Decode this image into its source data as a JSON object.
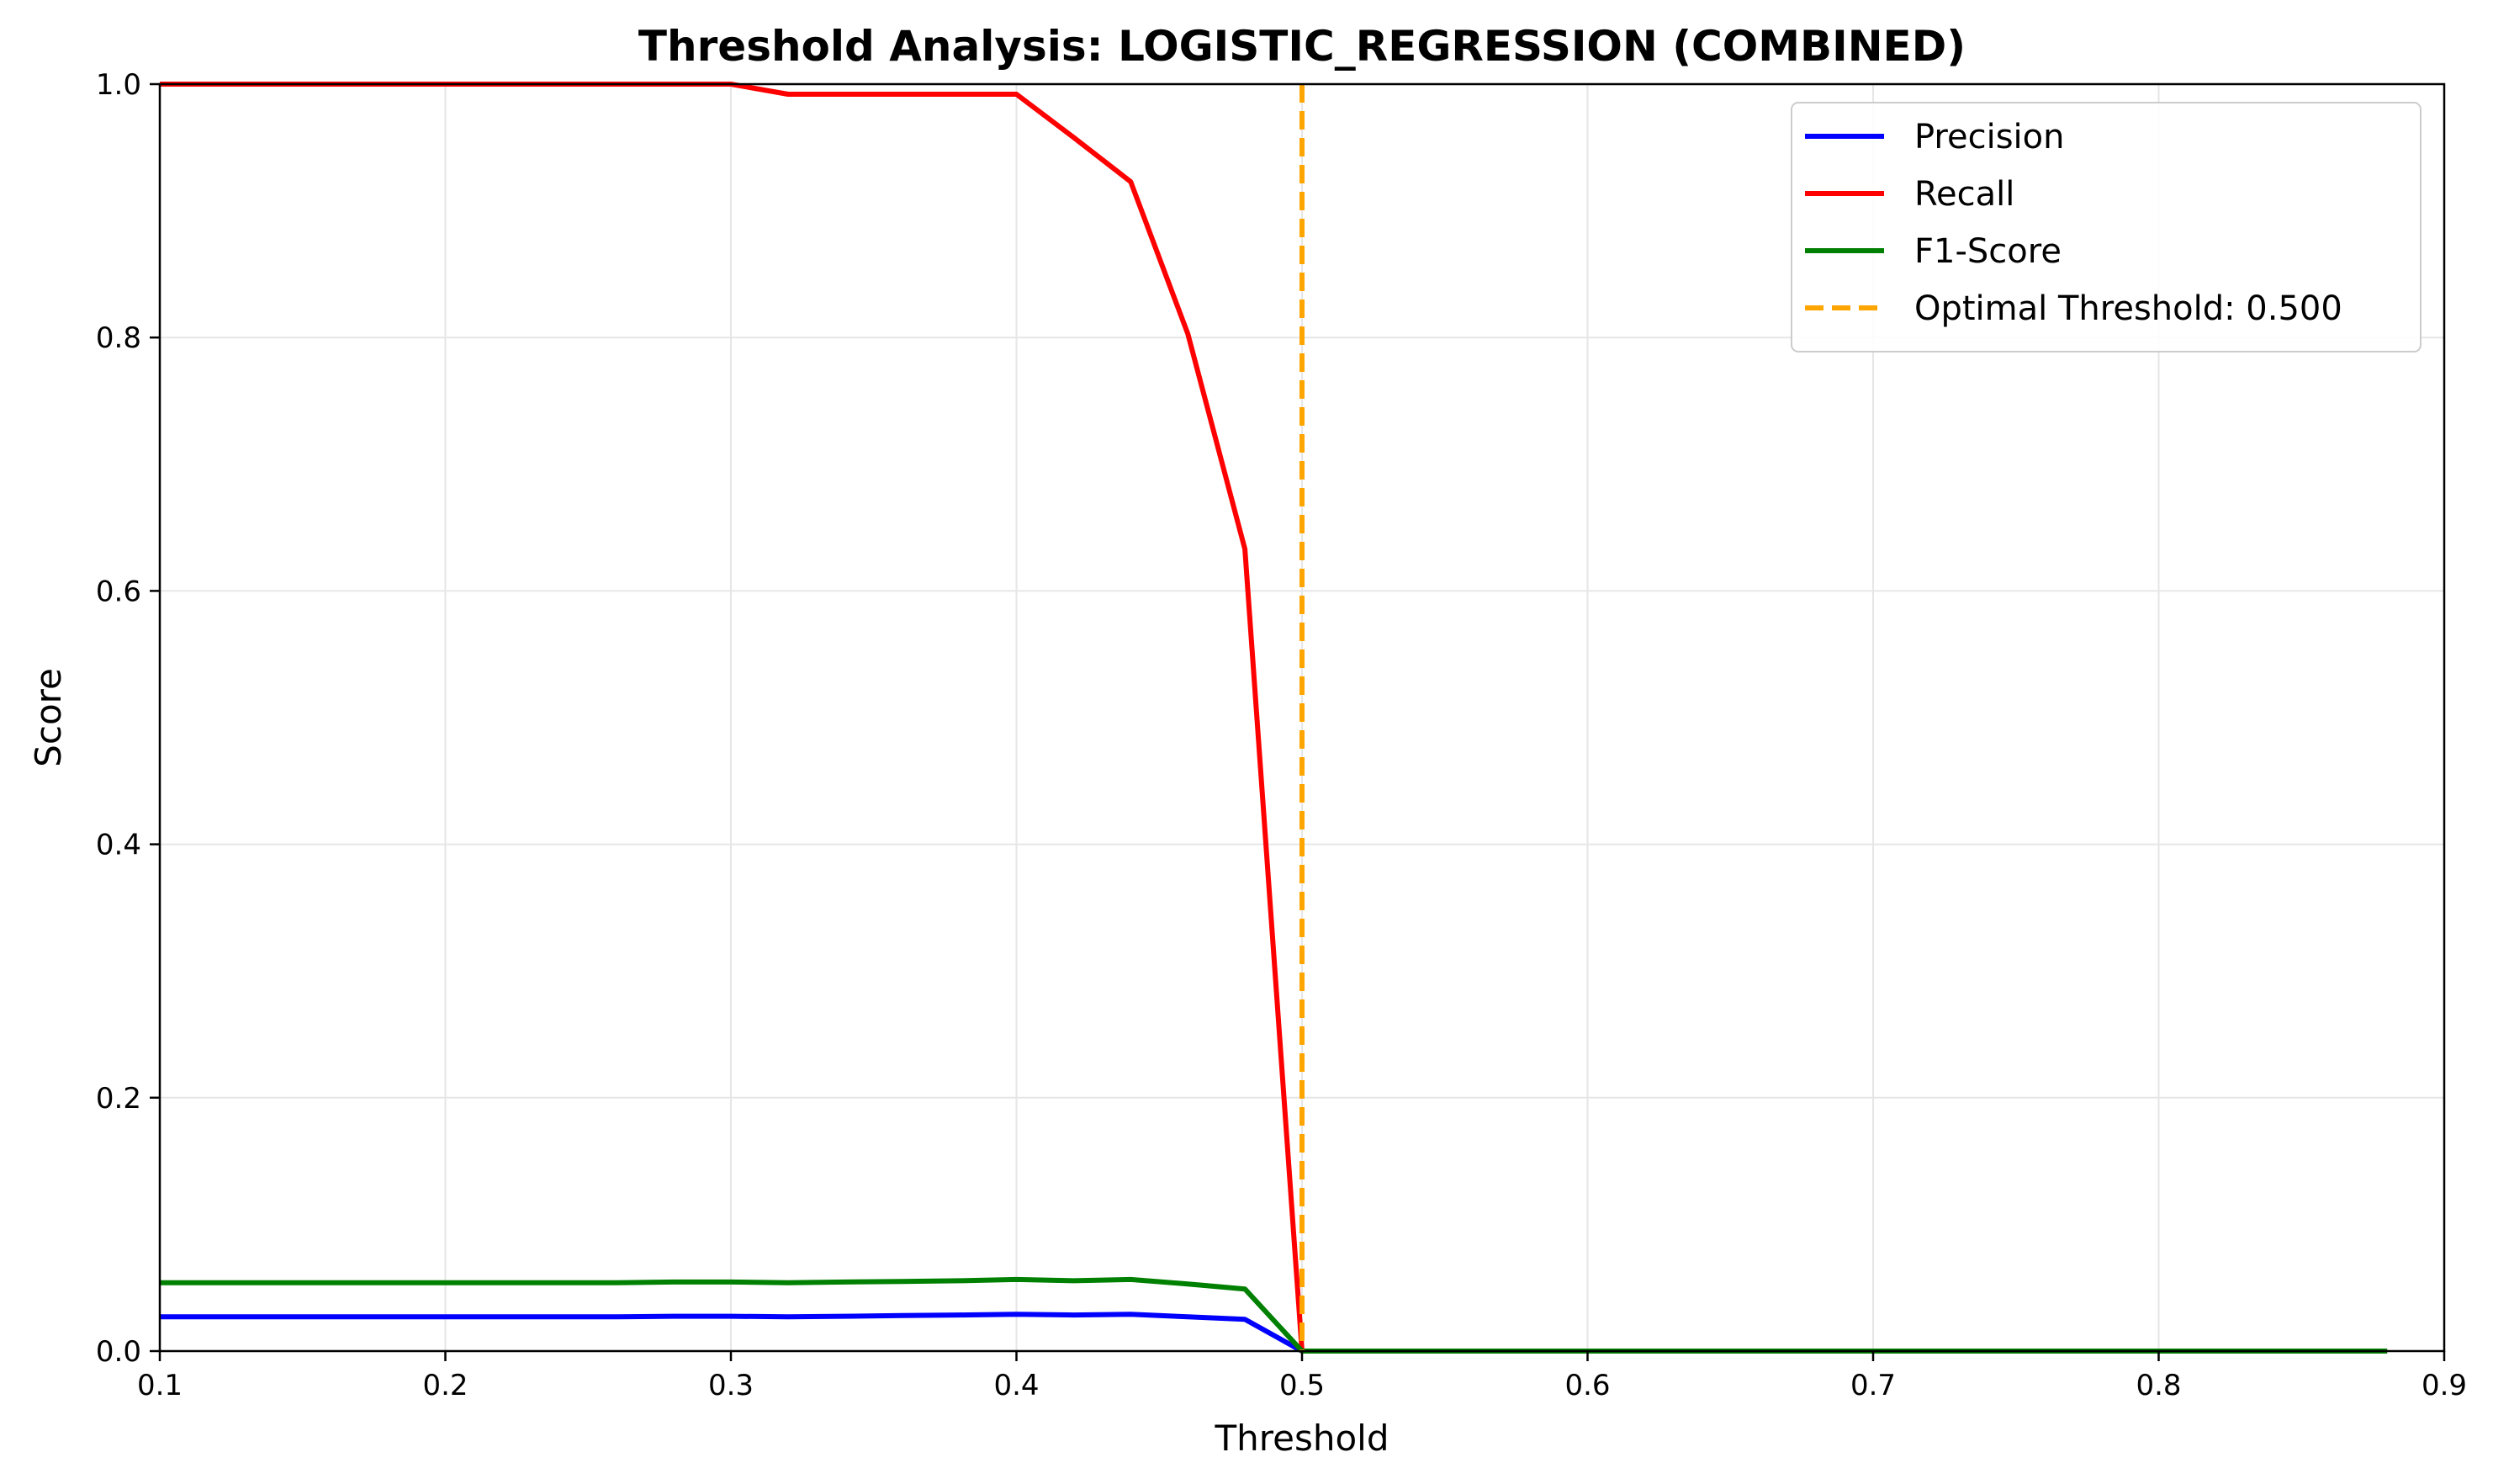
{
  "chart_data": {
    "type": "line",
    "title": "Threshold Analysis: LOGISTIC_REGRESSION (COMBINED)",
    "xlabel": "Threshold",
    "ylabel": "Score",
    "xlim": [
      0.1,
      0.9
    ],
    "ylim": [
      0.0,
      1.0
    ],
    "xticks": [
      0.1,
      0.2,
      0.3,
      0.4,
      0.5,
      0.6,
      0.7,
      0.8,
      0.9
    ],
    "xtick_labels": [
      "0.1",
      "0.2",
      "0.3",
      "0.4",
      "0.5",
      "0.6",
      "0.7",
      "0.8",
      "0.9"
    ],
    "yticks": [
      0.0,
      0.2,
      0.4,
      0.6,
      0.8,
      1.0
    ],
    "ytick_labels": [
      "0.0",
      "0.2",
      "0.4",
      "0.6",
      "0.8",
      "1.0"
    ],
    "grid": true,
    "legend_position": "top-right",
    "series": [
      {
        "name": "Precision",
        "color": "#0000ff",
        "x": [
          0.1,
          0.12,
          0.14,
          0.16,
          0.18,
          0.2,
          0.22,
          0.24,
          0.26,
          0.28,
          0.3,
          0.32,
          0.34,
          0.36,
          0.38,
          0.4,
          0.42,
          0.44,
          0.46,
          0.48,
          0.5,
          0.52,
          0.54,
          0.56,
          0.58,
          0.6,
          0.62,
          0.64,
          0.66,
          0.68,
          0.7,
          0.72,
          0.74,
          0.76,
          0.78,
          0.8,
          0.82,
          0.84,
          0.86,
          0.88
        ],
        "values": [
          0.027,
          0.027,
          0.027,
          0.027,
          0.027,
          0.027,
          0.027,
          0.027,
          0.027,
          0.0275,
          0.0275,
          0.027,
          0.0275,
          0.028,
          0.0285,
          0.029,
          0.0285,
          0.029,
          0.027,
          0.025,
          0.0,
          0.0,
          0.0,
          0.0,
          0.0,
          0.0,
          0.0,
          0.0,
          0.0,
          0.0,
          0.0,
          0.0,
          0.0,
          0.0,
          0.0,
          0.0,
          0.0,
          0.0,
          0.0,
          0.0
        ]
      },
      {
        "name": "Recall",
        "color": "#ff0000",
        "x": [
          0.1,
          0.12,
          0.14,
          0.16,
          0.18,
          0.2,
          0.22,
          0.24,
          0.26,
          0.28,
          0.3,
          0.32,
          0.34,
          0.36,
          0.38,
          0.4,
          0.42,
          0.44,
          0.46,
          0.48,
          0.5,
          0.52,
          0.54,
          0.56,
          0.58,
          0.6,
          0.62,
          0.64,
          0.66,
          0.68,
          0.7,
          0.72,
          0.74,
          0.76,
          0.78,
          0.8,
          0.82,
          0.84,
          0.86,
          0.88
        ],
        "values": [
          1.0,
          1.0,
          1.0,
          1.0,
          1.0,
          1.0,
          1.0,
          1.0,
          1.0,
          1.0,
          1.0,
          0.992,
          0.992,
          0.992,
          0.992,
          0.992,
          0.958,
          0.923,
          0.803,
          0.633,
          0.0,
          0.0,
          0.0,
          0.0,
          0.0,
          0.0,
          0.0,
          0.0,
          0.0,
          0.0,
          0.0,
          0.0,
          0.0,
          0.0,
          0.0,
          0.0,
          0.0,
          0.0,
          0.0,
          0.0
        ]
      },
      {
        "name": "F1-Score",
        "color": "#008000",
        "x": [
          0.1,
          0.12,
          0.14,
          0.16,
          0.18,
          0.2,
          0.22,
          0.24,
          0.26,
          0.28,
          0.3,
          0.32,
          0.34,
          0.36,
          0.38,
          0.4,
          0.42,
          0.44,
          0.46,
          0.48,
          0.5,
          0.52,
          0.54,
          0.56,
          0.58,
          0.6,
          0.62,
          0.64,
          0.66,
          0.68,
          0.7,
          0.72,
          0.74,
          0.76,
          0.78,
          0.8,
          0.82,
          0.84,
          0.86,
          0.88
        ],
        "values": [
          0.054,
          0.054,
          0.054,
          0.054,
          0.054,
          0.054,
          0.054,
          0.054,
          0.054,
          0.0545,
          0.0545,
          0.054,
          0.0545,
          0.055,
          0.0555,
          0.0565,
          0.0555,
          0.0565,
          0.053,
          0.049,
          0.0,
          0.0,
          0.0,
          0.0,
          0.0,
          0.0,
          0.0,
          0.0,
          0.0,
          0.0,
          0.0,
          0.0,
          0.0,
          0.0,
          0.0,
          0.0,
          0.0,
          0.0,
          0.0,
          0.0
        ]
      }
    ],
    "vline": {
      "name": "Optimal Threshold: 0.500",
      "x": 0.5,
      "color": "#ffa500",
      "style": "dashed"
    }
  }
}
